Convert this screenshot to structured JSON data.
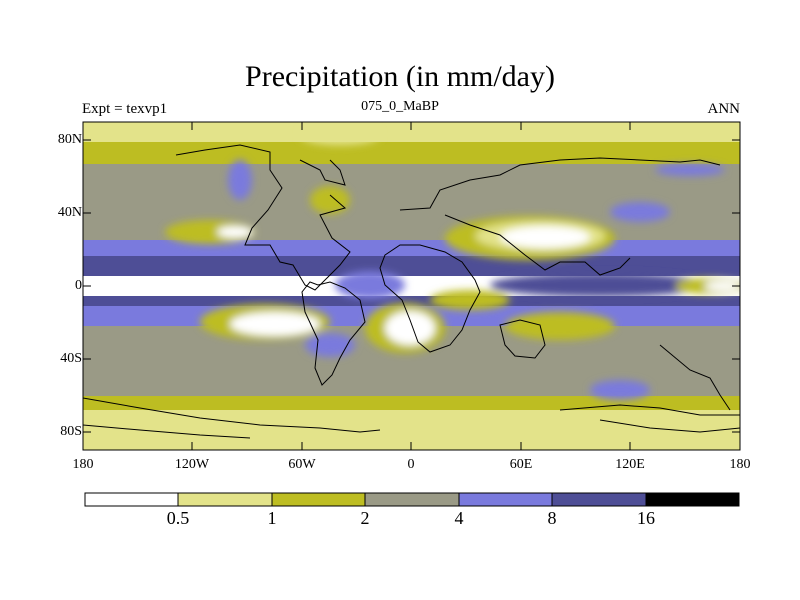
{
  "title": "Precipitation (in mm/day)",
  "subtitle_left": "Expt = texvp1",
  "subtitle_center": "075_0_MaBP",
  "subtitle_right": "ANN",
  "lat_labels": [
    "80N",
    "40N",
    "0",
    "40S",
    "80S"
  ],
  "lon_labels": [
    "180",
    "120W",
    "60W",
    "0",
    "60E",
    "120E",
    "180"
  ],
  "colorbar": {
    "colors": [
      "#ffffff",
      "#e3e38a",
      "#bdbd22",
      "#9a9a86",
      "#7a7add",
      "#4e4e96",
      "#000000"
    ],
    "labels": [
      "0.5",
      "1",
      "2",
      "4",
      "8",
      "16"
    ]
  }
}
